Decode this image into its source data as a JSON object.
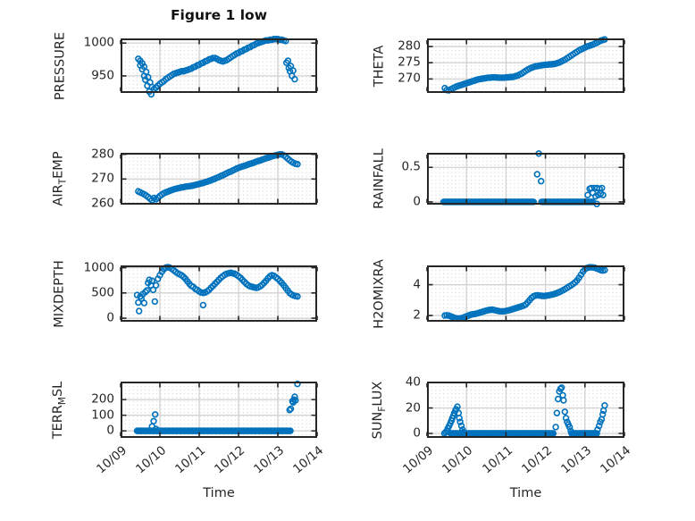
{
  "figure": {
    "title": "Figure 1 low",
    "background": "#ffffff"
  },
  "style": {
    "marker_color": "#0072BD",
    "axis_color": "#262626",
    "grid_color": "#d2d2d2",
    "minor_grid_color": "#c8c8c8",
    "text_color": "#262626"
  },
  "time_axis": {
    "xlabel": "Time",
    "xlim": [
      0,
      5
    ],
    "ticks": [
      0,
      1,
      2,
      3,
      4,
      5
    ],
    "tick_labels": [
      "10/09",
      "10/10",
      "10/11",
      "10/12",
      "10/13",
      "10/14"
    ],
    "x_unit": "days after 10/09"
  },
  "chart_data": [
    {
      "type": "scatter",
      "name": "PRESSURE",
      "ylabel_parts": [
        {
          "t": "PRESSURE",
          "sub": false
        }
      ],
      "ylim": [
        924,
        1007
      ],
      "yticks": [
        950,
        1000
      ],
      "ytick_labels": [
        "950",
        "1000"
      ],
      "x0": 0.45,
      "dx": 0.05,
      "y": [
        976,
        973,
        969,
        964,
        956,
        948,
        940,
        933,
        930,
        932,
        935,
        938,
        940,
        942,
        945,
        947,
        949,
        951,
        953,
        954,
        955,
        956,
        957,
        957,
        958,
        959,
        960,
        961,
        963,
        964,
        966,
        967,
        969,
        970,
        972,
        973,
        975,
        976,
        977,
        977,
        976,
        974,
        973,
        972,
        973,
        974,
        976,
        978,
        980,
        982,
        984,
        985,
        987,
        988,
        990,
        991,
        993,
        994,
        996,
        997,
        999,
        1000,
        1001,
        1002,
        1003,
        1004,
        1004,
        1005,
        1005,
        1006,
        1006,
        1006,
        1005,
        1005,
        1004,
        1003,
        null,
        null,
        null,
        null,
        null,
        null
      ],
      "extra": [
        [
          0.5,
          966
        ],
        [
          0.55,
          960
        ],
        [
          0.6,
          950
        ],
        [
          0.63,
          944
        ],
        [
          0.68,
          935
        ],
        [
          0.73,
          926
        ],
        [
          0.78,
          922
        ],
        [
          4.22,
          970
        ],
        [
          4.26,
          973
        ],
        [
          4.28,
          962
        ],
        [
          4.31,
          957
        ],
        [
          4.33,
          965
        ],
        [
          4.36,
          950
        ],
        [
          4.39,
          958
        ],
        [
          4.43,
          945
        ]
      ],
      "zero_runs": []
    },
    {
      "type": "scatter",
      "name": "THETA",
      "ylabel_parts": [
        {
          "t": "THETA",
          "sub": false
        }
      ],
      "ylim": [
        265.7,
        282.5
      ],
      "yticks": [
        270,
        275,
        280
      ],
      "ytick_labels": [
        "270",
        "275",
        "280"
      ],
      "x0": 0.45,
      "dx": 0.05,
      "y": [
        267.2,
        266.6,
        266.5,
        266.8,
        267.1,
        267.4,
        267.7,
        267.9,
        268.1,
        268.3,
        268.5,
        268.7,
        268.9,
        269.1,
        269.3,
        269.5,
        269.7,
        269.9,
        270.0,
        270.1,
        270.2,
        270.3,
        270.4,
        270.4,
        270.5,
        270.5,
        270.5,
        270.4,
        270.4,
        270.4,
        270.4,
        270.5,
        270.5,
        270.6,
        270.6,
        270.7,
        270.9,
        271.1,
        271.4,
        271.7,
        272.1,
        272.5,
        272.9,
        273.2,
        273.5,
        273.7,
        273.9,
        274.0,
        274.1,
        274.2,
        274.3,
        274.4,
        274.4,
        274.5,
        274.5,
        274.6,
        274.7,
        274.9,
        275.1,
        275.4,
        275.7,
        276.0,
        276.4,
        276.8,
        277.2,
        277.6,
        278.0,
        278.4,
        278.8,
        279.1,
        279.4,
        279.7,
        280.0,
        280.2,
        280.4,
        280.6,
        280.9,
        281.2,
        281.5,
        281.8,
        282.0,
        282.2
      ],
      "extra": [],
      "zero_runs": []
    },
    {
      "type": "scatter",
      "name": "AIR_TEMP",
      "ylabel_parts": [
        {
          "t": "AIR",
          "sub": false
        },
        {
          "t": "T",
          "sub": true
        },
        {
          "t": "EMP",
          "sub": false
        }
      ],
      "ylim": [
        259.6,
        280.6
      ],
      "yticks": [
        260,
        270,
        280
      ],
      "ytick_labels": [
        "260",
        "270",
        "280"
      ],
      "x0": 0.45,
      "dx": 0.05,
      "y": [
        265.0,
        264.6,
        264.2,
        263.8,
        263.3,
        262.7,
        262.0,
        261.4,
        262.3,
        261.8,
        262.4,
        263.1,
        263.7,
        264.2,
        264.6,
        264.9,
        265.2,
        265.5,
        265.8,
        266.0,
        266.2,
        266.4,
        266.6,
        266.7,
        266.9,
        267.0,
        267.1,
        267.2,
        267.4,
        267.6,
        267.8,
        268.0,
        268.2,
        268.4,
        268.7,
        268.9,
        269.2,
        269.5,
        269.8,
        270.1,
        270.5,
        270.8,
        271.2,
        271.5,
        271.9,
        272.3,
        272.7,
        273.0,
        273.4,
        273.8,
        274.2,
        274.5,
        274.8,
        275.1,
        275.3,
        275.6,
        275.9,
        276.2,
        276.4,
        276.7,
        277.0,
        277.3,
        277.5,
        277.8,
        278.1,
        278.4,
        278.6,
        278.9,
        279.2,
        279.4,
        279.6,
        279.8,
        280.0,
        280.0,
        279.6,
        279.0,
        278.3,
        277.6,
        277.0,
        276.5,
        276.2,
        276.0
      ],
      "extra": [],
      "zero_runs": []
    },
    {
      "type": "scatter",
      "name": "RAINFALL",
      "ylabel_parts": [
        {
          "t": "RAINFALL",
          "sub": false
        }
      ],
      "ylim": [
        -0.04,
        0.71
      ],
      "yticks": [
        0,
        0.5
      ],
      "ytick_labels": [
        "0",
        "0.5"
      ],
      "x0": 0.45,
      "dx": 0.05,
      "y": null,
      "extra": [
        [
          2.79,
          0.4
        ],
        [
          2.83,
          0.7
        ],
        [
          2.89,
          0.3
        ],
        [
          4.07,
          0.1
        ],
        [
          4.12,
          0.19
        ],
        [
          4.16,
          0.2
        ],
        [
          4.2,
          0.13
        ],
        [
          4.24,
          0.2
        ],
        [
          4.27,
          0.08
        ],
        [
          4.3,
          -0.03
        ],
        [
          4.31,
          0.2
        ],
        [
          4.34,
          0.1
        ],
        [
          4.37,
          0.19
        ],
        [
          4.4,
          0.12
        ],
        [
          4.43,
          0.2
        ],
        [
          4.46,
          0.1
        ]
      ],
      "zero_runs": [
        [
          0.42,
          2.72
        ],
        [
          2.9,
          4.2
        ]
      ]
    },
    {
      "type": "scatter",
      "name": "MIXDEPTH",
      "ylabel_parts": [
        {
          "t": "MIXDEPTH",
          "sub": false
        }
      ],
      "ylim": [
        -70,
        1045
      ],
      "yticks": [
        0,
        500,
        1000
      ],
      "ytick_labels": [
        "0",
        "500",
        "1000"
      ],
      "x0": 0.45,
      "dx": 0.05,
      "y": [
        null,
        null,
        null,
        null,
        null,
        null,
        null,
        null,
        null,
        null,
        780,
        850,
        920,
        970,
        1000,
        1010,
        1000,
        980,
        950,
        920,
        890,
        870,
        850,
        820,
        780,
        730,
        680,
        640,
        620,
        580,
        560,
        530,
        510,
        500,
        510,
        530,
        560,
        600,
        640,
        680,
        720,
        760,
        800,
        830,
        860,
        880,
        890,
        900,
        890,
        880,
        860,
        830,
        800,
        760,
        720,
        680,
        650,
        630,
        620,
        610,
        600,
        610,
        630,
        660,
        700,
        740,
        790,
        830,
        850,
        840,
        810,
        780,
        740,
        700,
        650,
        600,
        550,
        500,
        470,
        450,
        440,
        430
      ],
      "extra": [
        [
          0.42,
          460
        ],
        [
          0.45,
          310
        ],
        [
          0.47,
          140
        ],
        [
          0.5,
          430
        ],
        [
          0.53,
          390
        ],
        [
          0.57,
          480
        ],
        [
          0.6,
          300
        ],
        [
          0.63,
          520
        ],
        [
          0.67,
          550
        ],
        [
          0.7,
          700
        ],
        [
          0.73,
          760
        ],
        [
          0.77,
          650
        ],
        [
          0.8,
          740
        ],
        [
          0.83,
          560
        ],
        [
          0.87,
          330
        ],
        [
          0.9,
          650
        ],
        [
          2.1,
          260
        ]
      ],
      "zero_runs": []
    },
    {
      "type": "scatter",
      "name": "H2OMIXRA",
      "ylabel_parts": [
        {
          "t": "H2OMIXRA",
          "sub": false
        }
      ],
      "ylim": [
        1.6,
        5.25
      ],
      "yticks": [
        2,
        4
      ],
      "ytick_labels": [
        "2",
        "4"
      ],
      "x0": 0.45,
      "dx": 0.05,
      "y": [
        2.0,
        2.02,
        2.0,
        1.95,
        1.9,
        1.85,
        1.82,
        1.8,
        1.82,
        1.85,
        1.9,
        1.95,
        2.0,
        2.05,
        2.08,
        2.1,
        2.13,
        2.16,
        2.2,
        2.24,
        2.28,
        2.32,
        2.35,
        2.37,
        2.38,
        2.36,
        2.33,
        2.3,
        2.28,
        2.27,
        2.28,
        2.3,
        2.33,
        2.36,
        2.4,
        2.44,
        2.48,
        2.52,
        2.56,
        2.6,
        2.65,
        2.72,
        2.85,
        3.0,
        3.15,
        3.25,
        3.3,
        3.32,
        3.3,
        3.28,
        3.27,
        3.28,
        3.3,
        3.32,
        3.35,
        3.38,
        3.42,
        3.47,
        3.52,
        3.58,
        3.65,
        3.72,
        3.8,
        3.88,
        3.96,
        4.05,
        4.15,
        4.28,
        4.45,
        4.65,
        4.85,
        5.0,
        5.08,
        5.12,
        5.13,
        5.12,
        5.1,
        5.05,
        5.0,
        4.95,
        4.92,
        4.95
      ],
      "extra": [],
      "zero_runs": []
    },
    {
      "type": "scatter",
      "name": "TERR_MSL",
      "ylabel_parts": [
        {
          "t": "TERR",
          "sub": false
        },
        {
          "t": "M",
          "sub": true
        },
        {
          "t": "SL",
          "sub": false
        }
      ],
      "ylim": [
        -45,
        315
      ],
      "yticks": [
        0,
        100,
        200
      ],
      "ytick_labels": [
        "0",
        "100",
        "200"
      ],
      "x0": 0.45,
      "dx": 0.05,
      "y": null,
      "extra": [
        [
          0.8,
          28
        ],
        [
          0.84,
          62
        ],
        [
          0.88,
          105
        ],
        [
          0.9,
          12
        ],
        [
          4.3,
          133
        ],
        [
          4.33,
          141
        ],
        [
          4.37,
          190
        ],
        [
          4.39,
          182
        ],
        [
          4.41,
          200
        ],
        [
          4.43,
          218
        ],
        [
          4.45,
          195
        ],
        [
          4.5,
          300
        ]
      ],
      "zero_runs": [
        [
          0.42,
          4.32
        ]
      ]
    },
    {
      "type": "scatter",
      "name": "SUN_FLUX",
      "ylabel_parts": [
        {
          "t": "SUN",
          "sub": false
        },
        {
          "t": "F",
          "sub": true
        },
        {
          "t": "LUX",
          "sub": false
        }
      ],
      "ylim": [
        -3.5,
        40.7
      ],
      "yticks": [
        0,
        20,
        40
      ],
      "ytick_labels": [
        "0",
        "20",
        "40"
      ],
      "x0": 0.45,
      "dx": 0.05,
      "y": null,
      "extra": [
        [
          0.44,
          0
        ],
        [
          0.47,
          1
        ],
        [
          0.5,
          2
        ],
        [
          0.53,
          4
        ],
        [
          0.56,
          6
        ],
        [
          0.59,
          8
        ],
        [
          0.62,
          10
        ],
        [
          0.64,
          12
        ],
        [
          0.67,
          14
        ],
        [
          0.69,
          16
        ],
        [
          0.72,
          18
        ],
        [
          0.74,
          19
        ],
        [
          0.77,
          21
        ],
        [
          0.8,
          16
        ],
        [
          0.82,
          12
        ],
        [
          0.84,
          9
        ],
        [
          0.87,
          6
        ],
        [
          0.9,
          3
        ],
        [
          0.92,
          1
        ],
        [
          3.26,
          5
        ],
        [
          3.29,
          16
        ],
        [
          3.32,
          27
        ],
        [
          3.35,
          33
        ],
        [
          3.38,
          35
        ],
        [
          3.41,
          36
        ],
        [
          3.44,
          30
        ],
        [
          3.46,
          26
        ],
        [
          3.49,
          17
        ],
        [
          3.52,
          12
        ],
        [
          3.55,
          9
        ],
        [
          3.58,
          7
        ],
        [
          3.61,
          5
        ],
        [
          3.64,
          2
        ],
        [
          4.32,
          3
        ],
        [
          4.36,
          6
        ],
        [
          4.39,
          9
        ],
        [
          4.42,
          11
        ],
        [
          4.45,
          15
        ],
        [
          4.47,
          18
        ],
        [
          4.5,
          22
        ]
      ],
      "zero_runs": [
        [
          0.6,
          3.22
        ],
        [
          3.66,
          4.3
        ]
      ]
    }
  ]
}
